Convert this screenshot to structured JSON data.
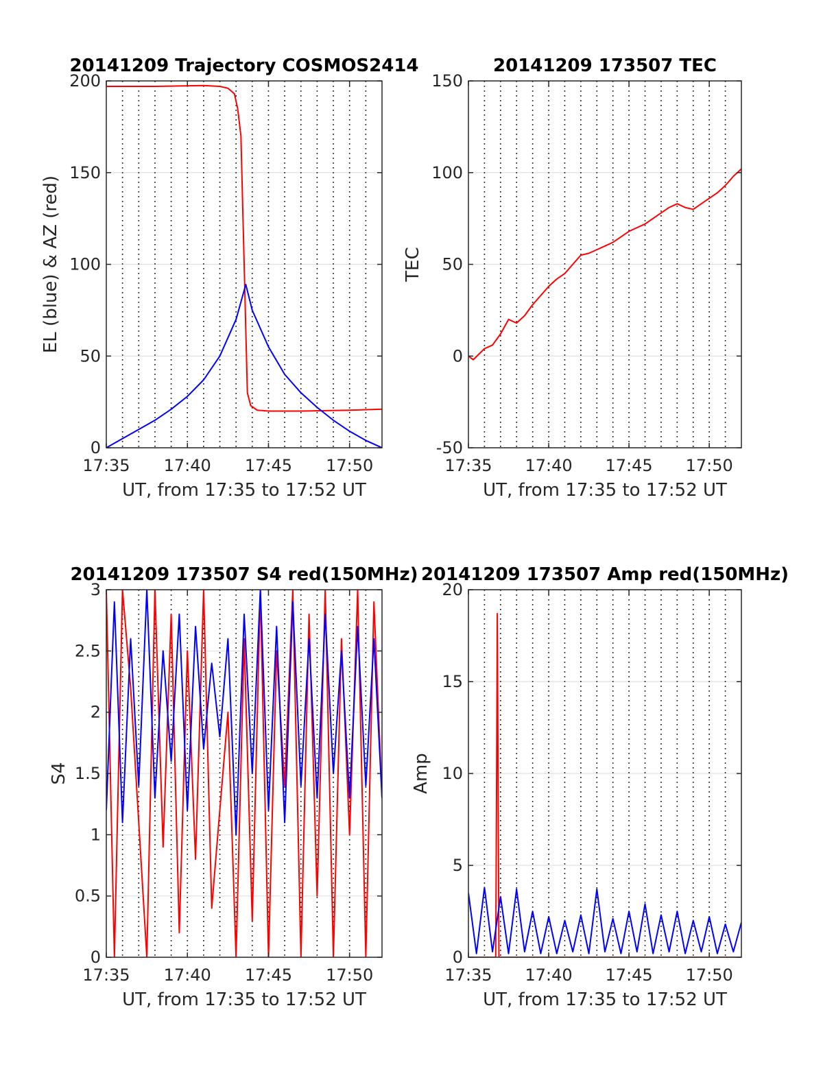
{
  "chart_data": [
    {
      "id": "traj",
      "type": "line",
      "title": "20141209 Trajectory COSMOS2414",
      "xlabel": "UT, from 17:35 to 17:52 UT",
      "ylabel": "EL (blue) & AZ (red)",
      "xlim": [
        0,
        17
      ],
      "ylim": [
        0,
        200
      ],
      "xticks": [
        0,
        5,
        10,
        15
      ],
      "xtick_labels": [
        "17:35",
        "17:40",
        "17:45",
        "17:50"
      ],
      "yticks": [
        0,
        50,
        100,
        150,
        200
      ],
      "ytick_labels": [
        "0",
        "50",
        "100",
        "150",
        "200"
      ],
      "minor_grid_x": [
        1,
        2,
        3,
        4,
        6,
        7,
        8,
        9,
        11,
        12,
        13,
        14,
        16
      ],
      "series": [
        {
          "color": "#ff0000",
          "x": [
            0,
            3,
            6,
            7,
            7.5,
            7.9,
            8.1,
            8.3,
            8.5,
            8.7,
            8.9,
            9.3,
            10,
            12,
            15,
            17
          ],
          "values": [
            197,
            197,
            197.5,
            197,
            196,
            193,
            185,
            170,
            100,
            30,
            23,
            20.5,
            20,
            20,
            20.5,
            21
          ]
        },
        {
          "color": "#0000ff",
          "x": [
            0,
            1,
            2,
            3,
            4,
            5,
            6,
            7,
            8,
            8.6,
            9,
            10,
            11,
            12,
            13,
            14,
            15,
            16,
            17
          ],
          "values": [
            0,
            5,
            10,
            15,
            21,
            28,
            37,
            50,
            70,
            89,
            75,
            55,
            40,
            30,
            22,
            15,
            9,
            4,
            0
          ]
        }
      ]
    },
    {
      "id": "tec",
      "type": "line",
      "title": "20141209 173507 TEC",
      "xlabel": "UT, from 17:35 to 17:52 UT",
      "ylabel": "TEC",
      "xlim": [
        0,
        17
      ],
      "ylim": [
        -50,
        150
      ],
      "xticks": [
        0,
        5,
        10,
        15
      ],
      "xtick_labels": [
        "17:35",
        "17:40",
        "17:45",
        "17:50"
      ],
      "yticks": [
        -50,
        0,
        50,
        100,
        150
      ],
      "ytick_labels": [
        "-50",
        "0",
        "50",
        "100",
        "150"
      ],
      "minor_grid_x": [
        1,
        2,
        3,
        4,
        6,
        7,
        8,
        9,
        11,
        12,
        13,
        14,
        16
      ],
      "series": [
        {
          "color": "#ff0000",
          "x": [
            0,
            0.3,
            1,
            1.5,
            2,
            2.5,
            3,
            3.5,
            4,
            4.5,
            5,
            5.5,
            6,
            6.5,
            7,
            7.5,
            8,
            8.5,
            9,
            9.5,
            10,
            10.5,
            11,
            11.5,
            12,
            12.5,
            13,
            13.5,
            14,
            14.5,
            15,
            15.5,
            16,
            16.5,
            17
          ],
          "values": [
            0,
            -2,
            4,
            6,
            12,
            20,
            18,
            22,
            28,
            33,
            38,
            42,
            45,
            50,
            55,
            56,
            58,
            60,
            62,
            65,
            68,
            70,
            72,
            75,
            78,
            81,
            83,
            81,
            80,
            83,
            86,
            89,
            93,
            98,
            102
          ]
        }
      ]
    },
    {
      "id": "s4",
      "type": "line",
      "title": "20141209 173507 S4 red(150MHz)",
      "xlabel": "UT, from 17:35 to 17:52 UT",
      "ylabel": "S4",
      "xlim": [
        0,
        17
      ],
      "ylim": [
        0,
        3
      ],
      "xticks": [
        0,
        5,
        10,
        15
      ],
      "xtick_labels": [
        "17:35",
        "17:40",
        "17:45",
        "17:50"
      ],
      "yticks": [
        0,
        0.5,
        1,
        1.5,
        2,
        2.5,
        3
      ],
      "ytick_labels": [
        "0",
        "0.5",
        "1",
        "1.5",
        "2",
        "2.5",
        "3"
      ],
      "minor_grid_x": [
        1,
        2,
        3,
        4,
        6,
        7,
        8,
        9,
        11,
        12,
        13,
        14,
        16
      ],
      "series": [
        {
          "color": "#ff0000",
          "x": [
            0,
            0.5,
            1,
            1.5,
            2,
            2.5,
            3,
            3.5,
            4,
            4.5,
            5,
            5.5,
            6,
            6.5,
            7,
            7.5,
            8,
            8.5,
            9,
            9.5,
            10,
            10.5,
            11,
            11.5,
            12,
            12.5,
            13,
            13.5,
            14,
            14.5,
            15,
            15.5,
            16,
            16.5,
            17
          ],
          "values": [
            3,
            0,
            3,
            2.2,
            1.1,
            0,
            3,
            0.9,
            2.8,
            0.2,
            2.5,
            0.8,
            3,
            0.4,
            1.2,
            2,
            0,
            2.6,
            0.3,
            3,
            0,
            2.5,
            1.4,
            3,
            0,
            2.8,
            0.5,
            3,
            0,
            2.6,
            1.0,
            3,
            0,
            2.9,
            1.3
          ]
        },
        {
          "color": "#0000ff",
          "x": [
            0,
            0.5,
            1,
            1.5,
            2,
            2.5,
            3,
            3.5,
            4,
            4.5,
            5,
            5.5,
            6,
            6.5,
            7,
            7.5,
            8,
            8.5,
            9,
            9.5,
            10,
            10.5,
            11,
            11.5,
            12,
            12.5,
            13,
            13.5,
            14,
            14.5,
            15,
            15.5,
            16,
            16.5,
            17
          ],
          "values": [
            1.2,
            2.9,
            1.1,
            2.6,
            1.4,
            3,
            1.3,
            2.5,
            1.6,
            2.8,
            1.2,
            2.7,
            1.7,
            2.4,
            1.8,
            2.6,
            1.0,
            2.8,
            1.5,
            3,
            1.2,
            2.7,
            1.1,
            2.9,
            1.4,
            2.6,
            1.3,
            2.8,
            1.5,
            2.5,
            1.3,
            2.7,
            1.4,
            2.6,
            1.3
          ]
        }
      ]
    },
    {
      "id": "amp",
      "type": "line",
      "title": "20141209 173507 Amp red(150MHz)",
      "xlabel": "UT, from 17:35 to 17:52 UT",
      "ylabel": "Amp",
      "xlim": [
        0,
        17
      ],
      "ylim": [
        0,
        20
      ],
      "xticks": [
        0,
        5,
        10,
        15
      ],
      "xtick_labels": [
        "17:35",
        "17:40",
        "17:45",
        "17:50"
      ],
      "yticks": [
        0,
        5,
        10,
        15,
        20
      ],
      "ytick_labels": [
        "0",
        "5",
        "10",
        "15",
        "20"
      ],
      "minor_grid_x": [
        1,
        2,
        3,
        4,
        6,
        7,
        8,
        9,
        11,
        12,
        13,
        14,
        16
      ],
      "series": [
        {
          "color": "#ff0000",
          "x": [
            0,
            1.7,
            1.75,
            1.8,
            1.85,
            1.9,
            17
          ],
          "values": [
            0,
            0,
            9,
            18.7,
            9,
            0,
            0
          ]
        },
        {
          "color": "#0000ff",
          "x": [
            0,
            0.5,
            1,
            1.5,
            2,
            2.5,
            3,
            3.5,
            4,
            4.5,
            5,
            5.5,
            6,
            6.5,
            7,
            7.5,
            8,
            8.5,
            9,
            9.5,
            10,
            10.5,
            11,
            11.5,
            12,
            12.5,
            13,
            13.5,
            14,
            14.5,
            15,
            15.5,
            16,
            16.5,
            17
          ],
          "values": [
            3.5,
            0.2,
            3.8,
            0.3,
            3.3,
            0.2,
            3.7,
            0.3,
            2.5,
            0.2,
            2.2,
            0.2,
            2.0,
            0.3,
            2.3,
            0.2,
            3.7,
            0.3,
            2.1,
            0.2,
            2.5,
            0.3,
            2.9,
            0.2,
            2.3,
            0.3,
            2.5,
            0.2,
            2.0,
            0.3,
            2.2,
            0.2,
            1.8,
            0.3,
            1.9
          ]
        }
      ]
    }
  ]
}
